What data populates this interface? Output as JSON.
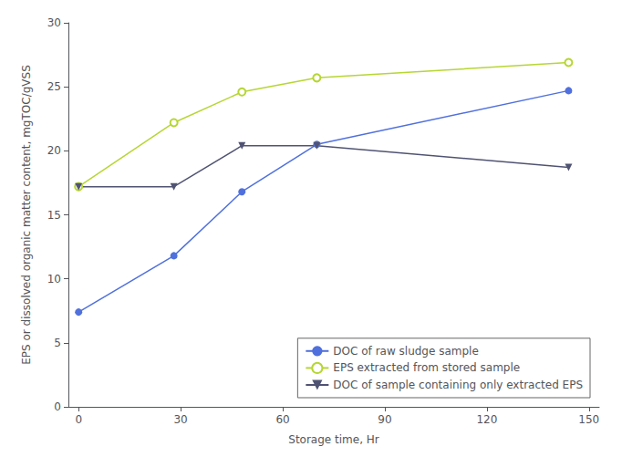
{
  "chart_data": {
    "type": "line",
    "xlabel": "Storage time, Hr",
    "ylabel": "EPS or dissolved organic matter content, mgTOC/gVSS",
    "x": [
      0,
      28,
      48,
      70,
      144
    ],
    "series": [
      {
        "name": "DOC of raw sludge sample",
        "marker": "circle",
        "values": [
          7.4,
          11.8,
          16.8,
          20.5,
          24.7
        ]
      },
      {
        "name": "EPS extracted from stored sample",
        "marker": "circle_open",
        "values": [
          17.2,
          22.2,
          24.6,
          25.7,
          26.9
        ]
      },
      {
        "name": "DOC of sample containing only extracted EPS",
        "marker": "triangle_down",
        "values": [
          17.2,
          17.2,
          20.4,
          20.4,
          18.7
        ]
      }
    ],
    "xlim": [
      -3,
      153
    ],
    "ylim": [
      0,
      30
    ],
    "xticks": [
      0,
      30,
      60,
      90,
      120,
      150
    ],
    "yticks": [
      0,
      5,
      10,
      15,
      20,
      25,
      30
    ],
    "grid": false,
    "legend": "lower right"
  }
}
